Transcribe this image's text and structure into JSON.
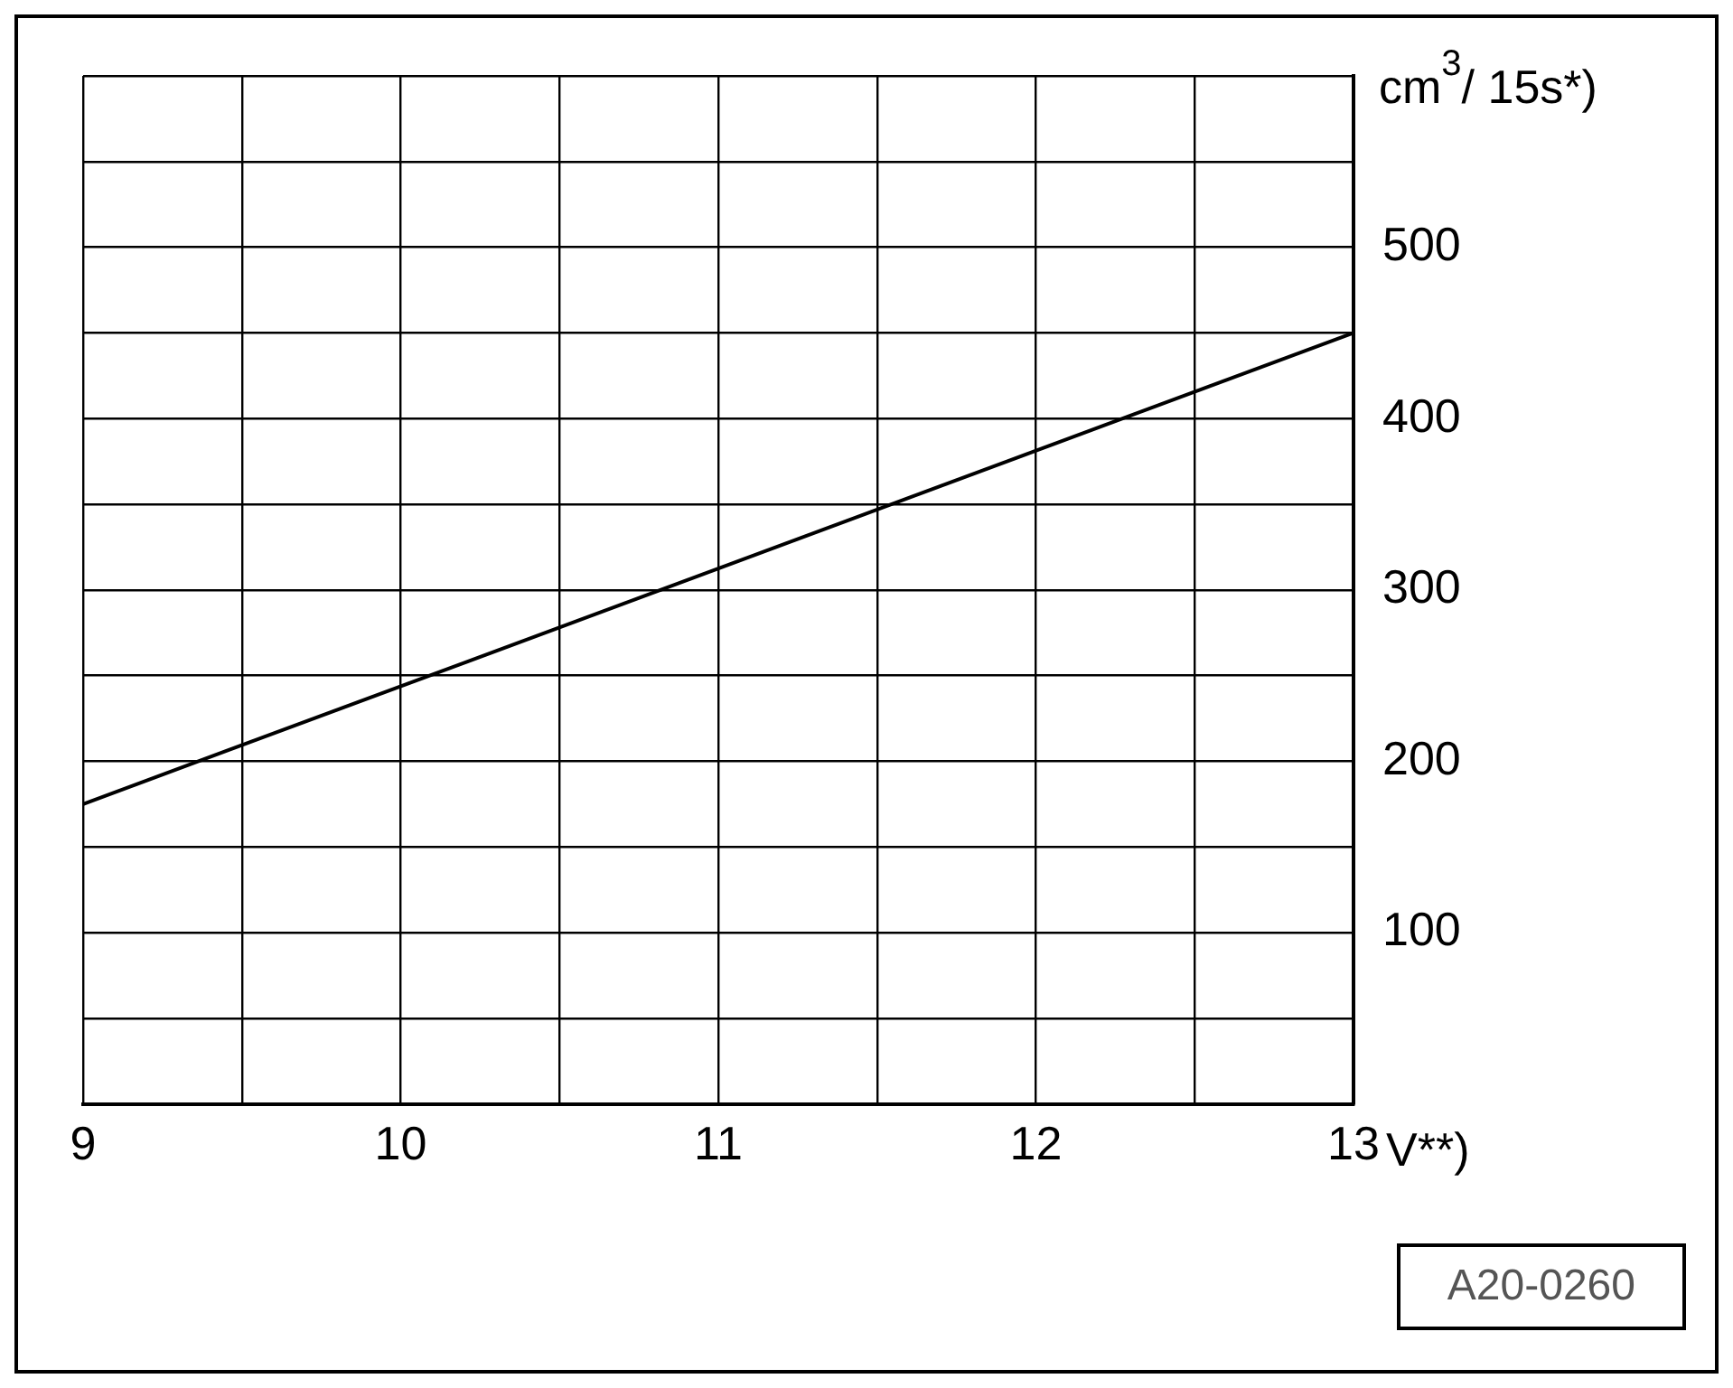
{
  "chart_data": {
    "type": "line",
    "xlabel": "V**)",
    "ylabel": "cm$^{3}$/ 15s*)",
    "x": [
      9,
      13
    ],
    "series": [
      {
        "color": "#000000",
        "values": [
          175,
          450
        ]
      }
    ],
    "xlim": [
      9,
      13
    ],
    "xticks": [
      9,
      {
        "value": 9.5,
        "label": null
      },
      10,
      {
        "value": 10.5,
        "label": null
      },
      11,
      {
        "value": 11.5,
        "label": null
      },
      12,
      {
        "value": 12.5,
        "label": null
      },
      13
    ],
    "ylim": [
      0,
      600
    ],
    "yticks": [
      {
        "value": 0,
        "label": null
      },
      {
        "value": 50,
        "label": null
      },
      100,
      {
        "value": 150,
        "label": null
      },
      200,
      {
        "value": 250,
        "label": null
      },
      300,
      {
        "value": 350,
        "label": null
      },
      400,
      {
        "value": 450,
        "label": null
      },
      500,
      {
        "value": 550,
        "label": null
      },
      {
        "value": 600,
        "label": null
      }
    ],
    "grid": true,
    "marker": "none",
    "line_style": "solid",
    "annotations": [
      "A20-0260"
    ]
  }
}
